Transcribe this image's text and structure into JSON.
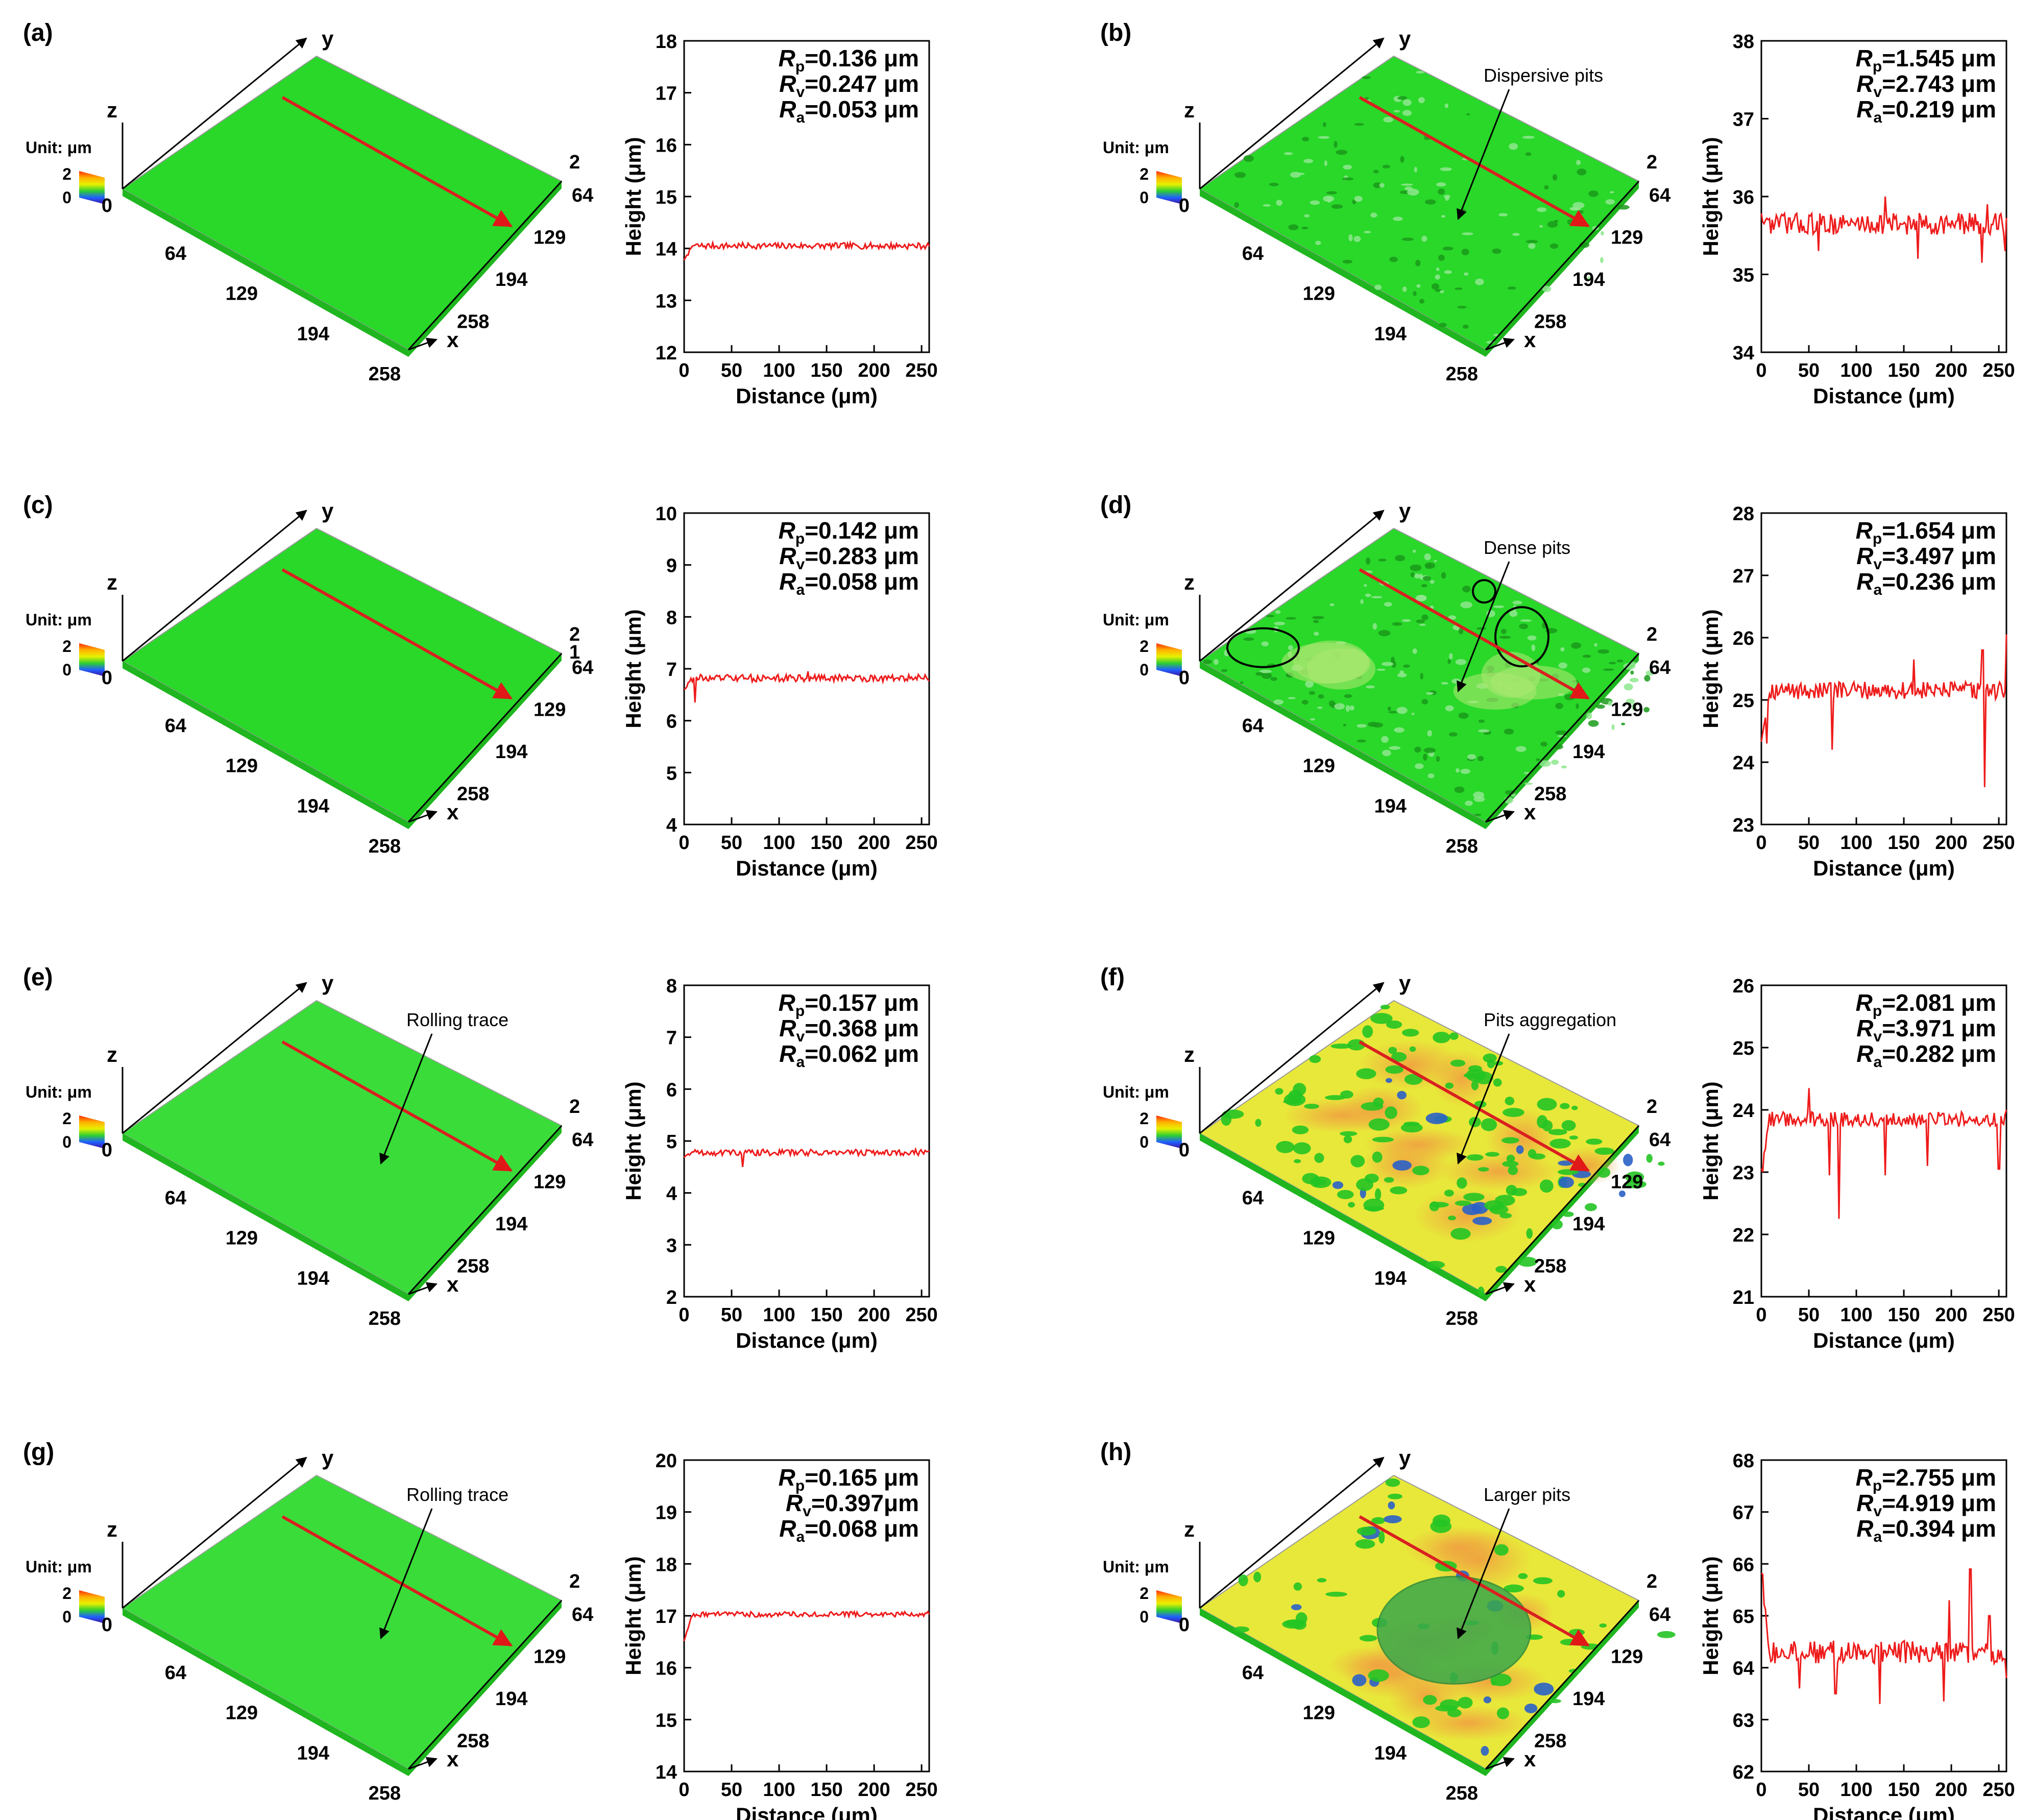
{
  "figure": {
    "colors": {
      "surface_green": "#29d829",
      "surface_dark": "#1fb61f",
      "surface_yellow": "#e8e83a",
      "surface_orange": "#f0a040",
      "profile_red": "#ee1b1b",
      "arrow_red": "#d92020",
      "axis": "#000000"
    },
    "common": {
      "unit_label": "Unit: μm",
      "legend_ticks": [
        "2",
        "0"
      ],
      "xlabel": "Distance (μm)",
      "ylabel": "Height (μm)",
      "x_ticks": [
        "0",
        "50",
        "100",
        "150",
        "200",
        "250"
      ],
      "axis3d_x": "x",
      "axis3d_y": "y",
      "axis3d_z": "z",
      "axis3d_ticks": [
        "64",
        "129",
        "194",
        "258"
      ],
      "axis3d_origin": "0",
      "axis3d_ztop": "2"
    },
    "panels": [
      {
        "label": "(a)",
        "rp": "=0.136 μm",
        "rv": "=0.247 μm",
        "ra": "=0.053 μm",
        "surface": "smooth",
        "annotation": ""
      },
      {
        "label": "(b)",
        "rp": "=1.545 μm",
        "rv": "=2.743 μm",
        "ra": "=0.219 μm",
        "surface": "dispersive",
        "annotation": "Dispersive pits"
      },
      {
        "label": "(c)",
        "rp": "=0.142 μm",
        "rv": "=0.283 μm",
        "ra": "=0.058 μm",
        "surface": "smooth",
        "annotation": "",
        "extra_tick": "1"
      },
      {
        "label": "(d)",
        "rp": "=1.654 μm",
        "rv": "=3.497 μm",
        "ra": "=0.236 μm",
        "surface": "dense",
        "annotation": "Dense pits"
      },
      {
        "label": "(e)",
        "rp": "=0.157 μm",
        "rv": "=0.368 μm",
        "ra": "=0.062 μm",
        "surface": "rolled",
        "annotation": "Rolling trace"
      },
      {
        "label": "(f)",
        "rp": "=2.081 μm",
        "rv": "=3.971 μm",
        "ra": "=0.282 μm",
        "surface": "aggregation",
        "annotation": "Pits aggregation"
      },
      {
        "label": "(g)",
        "rp": "=0.165 μm",
        "rv": "=0.397μm",
        "ra": "=0.068 μm",
        "surface": "rolled",
        "annotation": "Rolling trace"
      },
      {
        "label": "(h)",
        "rp": "=2.755 μm",
        "rv": "=4.919 μm",
        "ra": "=0.394 μm",
        "surface": "large",
        "annotation": "Larger pits"
      }
    ]
  },
  "chart_data": [
    {
      "panel": "(a)",
      "type": "line",
      "xlabel": "Distance (μm)",
      "ylabel": "Height (μm)",
      "xlim": [
        0,
        258
      ],
      "ylim": [
        12,
        18
      ],
      "y_ticks": [
        "12",
        "13",
        "14",
        "15",
        "16",
        "17",
        "18"
      ],
      "mean": 14.05,
      "noise": 0.06,
      "spikes": [],
      "start": 13.75
    },
    {
      "panel": "(b)",
      "type": "line",
      "xlabel": "Distance (μm)",
      "ylabel": "Height (μm)",
      "xlim": [
        0,
        258
      ],
      "ylim": [
        34,
        38
      ],
      "y_ticks": [
        "34",
        "35",
        "36",
        "37",
        "38"
      ],
      "mean": 35.65,
      "noise": 0.14,
      "spikes": [
        [
          60,
          35.3
        ],
        [
          130,
          36.0
        ],
        [
          165,
          35.2
        ],
        [
          232,
          35.15
        ],
        [
          238,
          35.9
        ],
        [
          256,
          35.3
        ]
      ],
      "start": 35.75
    },
    {
      "panel": "(c)",
      "type": "line",
      "xlabel": "Distance (μm)",
      "ylabel": "Height (μm)",
      "xlim": [
        0,
        258
      ],
      "ylim": [
        4,
        10
      ],
      "y_ticks": [
        "4",
        "5",
        "6",
        "7",
        "8",
        "9",
        "10"
      ],
      "mean": 6.82,
      "noise": 0.07,
      "spikes": [
        [
          12,
          6.35
        ],
        [
          130,
          6.95
        ]
      ],
      "start": 6.6
    },
    {
      "panel": "(d)",
      "type": "line",
      "xlabel": "Distance (μm)",
      "ylabel": "Height (μm)",
      "xlim": [
        0,
        258
      ],
      "ylim": [
        23,
        28
      ],
      "y_ticks": [
        "23",
        "24",
        "25",
        "26",
        "27",
        "28"
      ],
      "mean": 25.15,
      "noise": 0.14,
      "spikes": [
        [
          6,
          24.3
        ],
        [
          75,
          24.2
        ],
        [
          160,
          25.65
        ],
        [
          233,
          25.8
        ],
        [
          235,
          23.6
        ],
        [
          258,
          26.05
        ]
      ],
      "start": 24.35
    },
    {
      "panel": "(e)",
      "type": "line",
      "xlabel": "Distance (μm)",
      "ylabel": "Height (μm)",
      "xlim": [
        0,
        258
      ],
      "ylim": [
        2,
        8
      ],
      "y_ticks": [
        "2",
        "3",
        "4",
        "5",
        "6",
        "7",
        "8"
      ],
      "mean": 4.78,
      "noise": 0.06,
      "spikes": [
        [
          62,
          4.5
        ]
      ],
      "start": 4.7
    },
    {
      "panel": "(f)",
      "type": "line",
      "xlabel": "Distance (μm)",
      "ylabel": "Height (μm)",
      "xlim": [
        0,
        258
      ],
      "ylim": [
        21,
        26
      ],
      "y_ticks": [
        "21",
        "22",
        "23",
        "24",
        "25",
        "26"
      ],
      "mean": 23.85,
      "noise": 0.12,
      "spikes": [
        [
          2,
          23.0
        ],
        [
          50,
          24.35
        ],
        [
          72,
          22.95
        ],
        [
          82,
          22.25
        ],
        [
          130,
          22.95
        ],
        [
          175,
          23.1
        ],
        [
          250,
          23.05
        ],
        [
          258,
          24.0
        ]
      ],
      "start": 23.0
    },
    {
      "panel": "(g)",
      "type": "line",
      "xlabel": "Distance (μm)",
      "ylabel": "Height (μm)",
      "xlim": [
        0,
        258
      ],
      "ylim": [
        14,
        20
      ],
      "y_ticks": [
        "14",
        "15",
        "16",
        "17",
        "18",
        "19",
        "20"
      ],
      "mean": 17.03,
      "noise": 0.05,
      "spikes": [],
      "start": 16.5
    },
    {
      "panel": "(h)",
      "type": "line",
      "xlabel": "Distance (μm)",
      "ylabel": "Height (μm)",
      "xlim": [
        0,
        258
      ],
      "ylim": [
        62,
        68
      ],
      "y_ticks": [
        "62",
        "63",
        "64",
        "65",
        "66",
        "67",
        "68"
      ],
      "mean": 64.3,
      "noise": 0.22,
      "spikes": [
        [
          1,
          65.8
        ],
        [
          40,
          63.6
        ],
        [
          78,
          63.5
        ],
        [
          125,
          63.3
        ],
        [
          192,
          63.35
        ],
        [
          198,
          65.3
        ],
        [
          220,
          65.9
        ],
        [
          240,
          65.0
        ],
        [
          258,
          63.8
        ]
      ],
      "start": 65.8
    }
  ]
}
